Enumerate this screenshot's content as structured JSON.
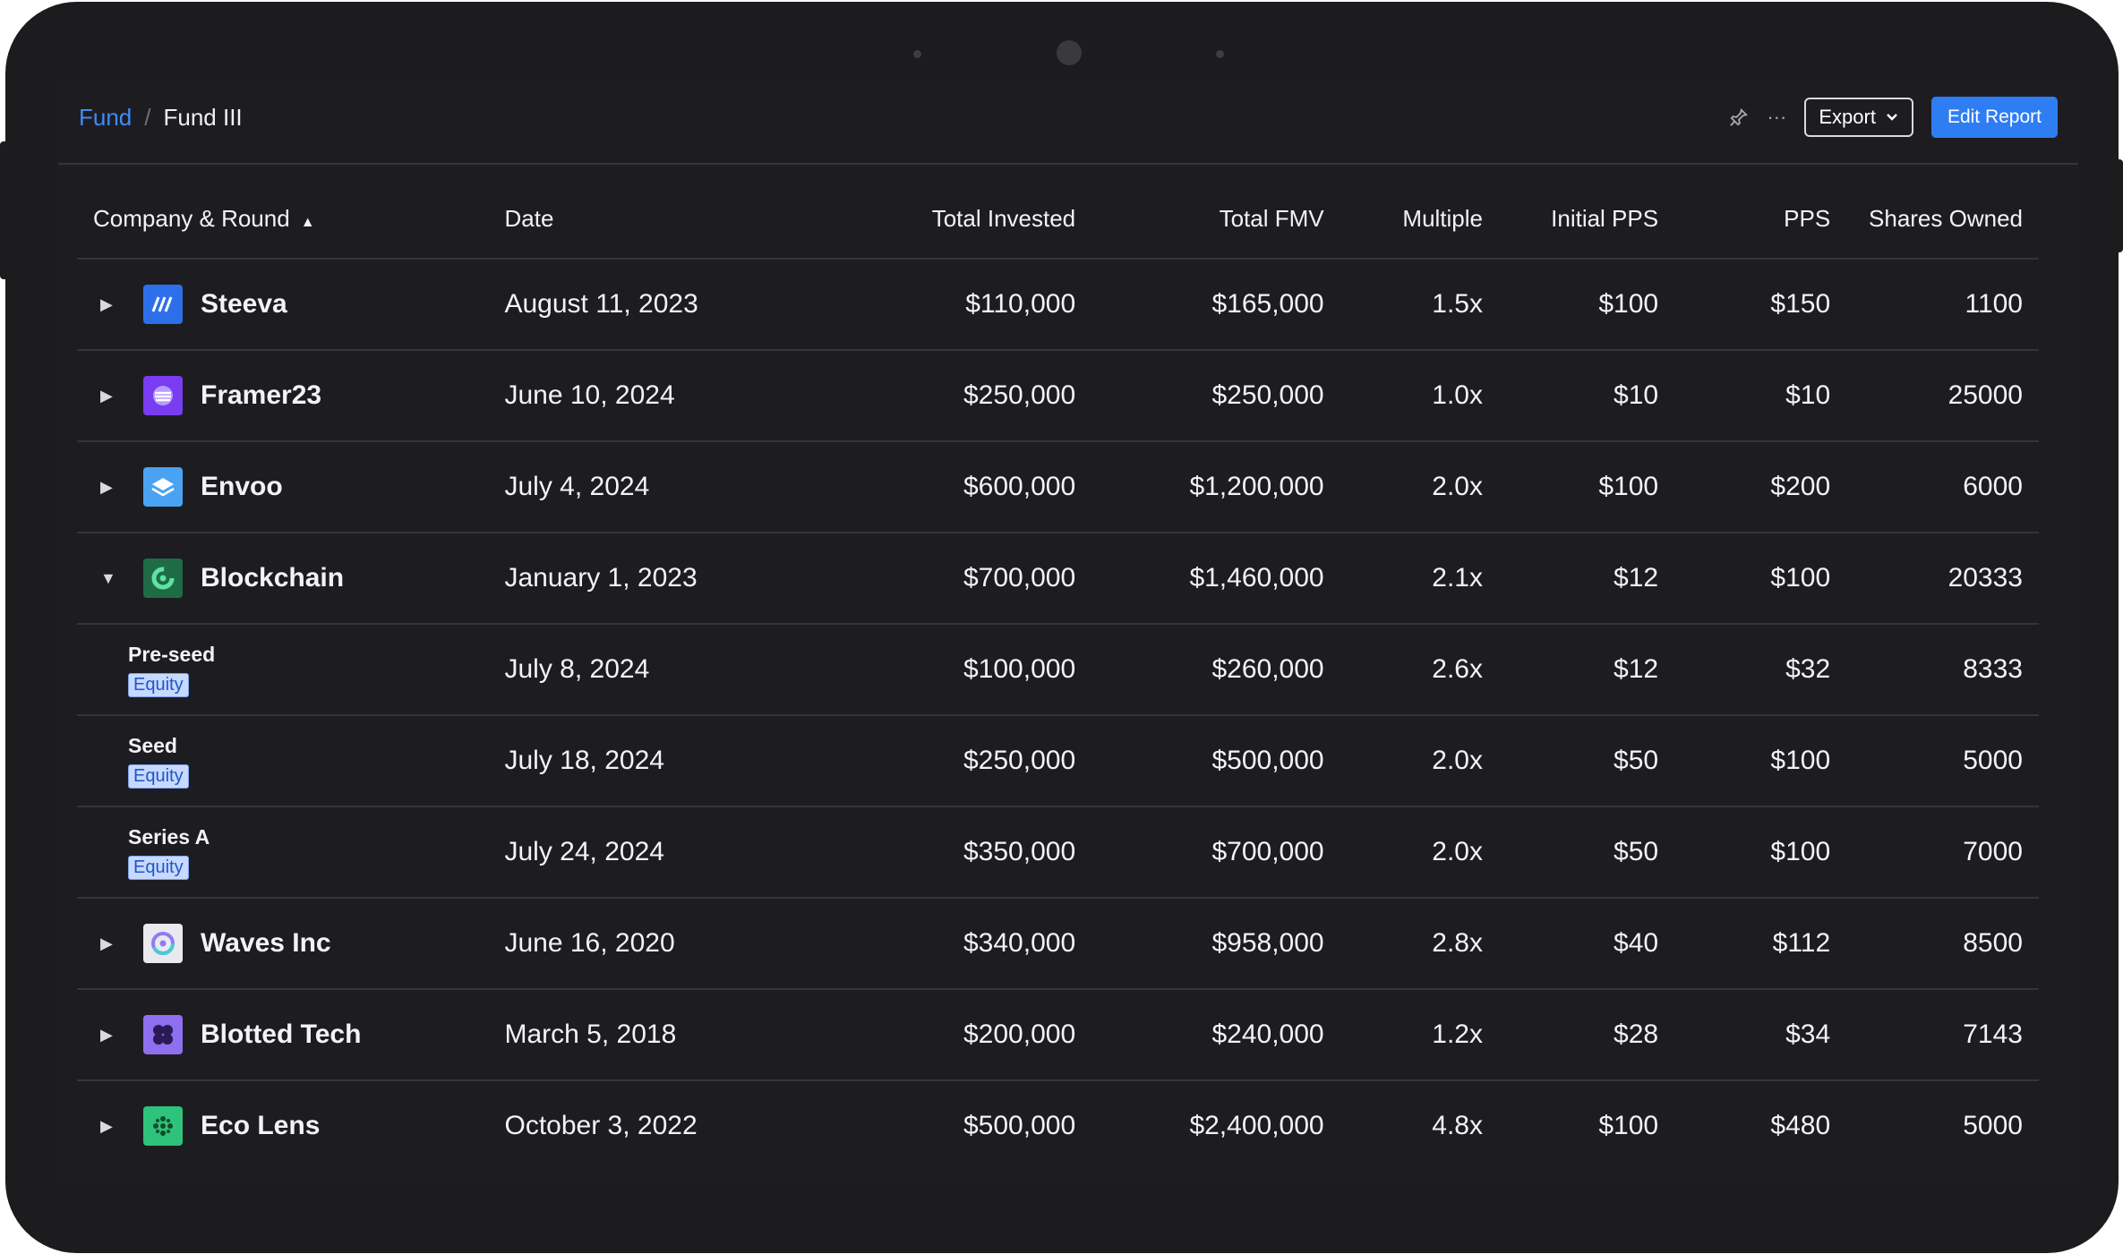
{
  "breadcrumb": {
    "root": "Fund",
    "separator": "/",
    "current": "Fund III"
  },
  "header": {
    "export_label": "Export",
    "edit_label": "Edit Report"
  },
  "table": {
    "columns": [
      "Company & Round",
      "Date",
      "Total Invested",
      "Total  FMV",
      "Multiple",
      "Initial PPS",
      "PPS",
      "Shares Owned"
    ],
    "rows": [
      {
        "name": "Steeva",
        "date": "August 11, 2023",
        "invested": "$110,000",
        "fmv": "$165,000",
        "multiple": "1.5x",
        "initial_pps": "$100",
        "pps": "$150",
        "shares": "1100",
        "logo_color": "#2d6fea",
        "icon": "steeva-logo-icon"
      },
      {
        "name": "Framer23",
        "date": "June 10, 2024",
        "invested": "$250,000",
        "fmv": "$250,000",
        "multiple": "1.0x",
        "initial_pps": "$10",
        "pps": "$10",
        "shares": "25000",
        "logo_color": "#7a3cf0",
        "icon": "framer23-logo-icon"
      },
      {
        "name": "Envoo",
        "date": "July 4, 2024",
        "invested": "$600,000",
        "fmv": "$1,200,000",
        "multiple": "2.0x",
        "initial_pps": "$100",
        "pps": "$200",
        "shares": "6000",
        "logo_color": "#4aa3f2",
        "icon": "envoo-logo-icon"
      },
      {
        "name": "Blockchain",
        "date": "January 1, 2023",
        "invested": "$700,000",
        "fmv": "$1,460,000",
        "multiple": "2.1x",
        "initial_pps": "$12",
        "pps": "$100",
        "shares": "20333",
        "logo_color": "#1f6b46",
        "icon": "blockchain-logo-icon"
      },
      {
        "round": "Pre-seed",
        "type": "Equity",
        "date": "July 8, 2024",
        "invested": "$100,000",
        "fmv": "$260,000",
        "multiple": "2.6x",
        "initial_pps": "$12",
        "pps": "$32",
        "shares": "8333"
      },
      {
        "round": "Seed",
        "type": "Equity",
        "date": "July 18, 2024",
        "invested": "$250,000",
        "fmv": "$500,000",
        "multiple": "2.0x",
        "initial_pps": "$50",
        "pps": "$100",
        "shares": "5000"
      },
      {
        "round": "Series A",
        "type": "Equity",
        "date": "July 24, 2024",
        "invested": "$350,000",
        "fmv": "$700,000",
        "multiple": "2.0x",
        "initial_pps": "$50",
        "pps": "$100",
        "shares": "7000"
      },
      {
        "name": "Waves Inc",
        "date": "June 16, 2020",
        "invested": "$340,000",
        "fmv": "$958,000",
        "multiple": "2.8x",
        "initial_pps": "$40",
        "pps": "$112",
        "shares": "8500",
        "logo_color": "#e9e9ee",
        "icon": "waves-logo-icon"
      },
      {
        "name": "Blotted Tech",
        "date": "March 5, 2018",
        "invested": "$200,000",
        "fmv": "$240,000",
        "multiple": "1.2x",
        "initial_pps": "$28",
        "pps": "$34",
        "shares": "7143",
        "logo_color": "#8e6ff0",
        "icon": "blotted-logo-icon"
      },
      {
        "name": "Eco Lens",
        "date": "October 3, 2022",
        "invested": "$500,000",
        "fmv": "$2,400,000",
        "multiple": "4.8x",
        "initial_pps": "$100",
        "pps": "$480",
        "shares": "5000",
        "logo_color": "#2fc27a",
        "icon": "ecolens-logo-icon"
      }
    ]
  }
}
